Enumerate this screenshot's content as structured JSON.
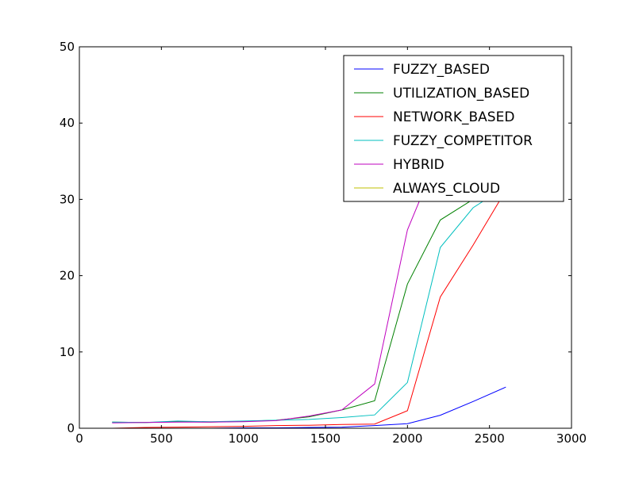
{
  "chart_data": {
    "type": "line",
    "title": "",
    "xlabel": "",
    "ylabel": "",
    "xlim": [
      0,
      3000
    ],
    "ylim": [
      0,
      50
    ],
    "xticks": [
      0,
      500,
      1000,
      1500,
      2000,
      2500,
      3000
    ],
    "yticks": [
      0,
      10,
      20,
      30,
      40,
      50
    ],
    "grid": false,
    "legend_position": "top-right",
    "series": [
      {
        "name": "FUZZY_BASED",
        "color": "#0000ff",
        "x": [
          200,
          400,
          600,
          800,
          1000,
          1200,
          1400,
          1600,
          1800,
          2000,
          2200,
          2400,
          2600
        ],
        "y": [
          0.0,
          0.0,
          0.0,
          0.0,
          0.05,
          0.05,
          0.1,
          0.15,
          0.35,
          0.6,
          1.7,
          3.5,
          5.4
        ]
      },
      {
        "name": "UTILIZATION_BASED",
        "color": "#008000",
        "x": [
          200,
          400,
          600,
          800,
          1000,
          1200,
          1400,
          1600,
          1800,
          2000,
          2200,
          2400,
          2500
        ],
        "y": [
          0.8,
          0.75,
          0.85,
          0.8,
          0.9,
          1.05,
          1.5,
          2.4,
          3.6,
          18.9,
          27.3,
          30.0,
          31.2
        ]
      },
      {
        "name": "NETWORK_BASED",
        "color": "#ff0000",
        "x": [
          200,
          400,
          600,
          800,
          1000,
          1200,
          1400,
          1600,
          1800,
          2000,
          2200,
          2400,
          2600
        ],
        "y": [
          0.0,
          0.1,
          0.15,
          0.2,
          0.25,
          0.35,
          0.4,
          0.5,
          0.55,
          2.3,
          17.2,
          24.0,
          31.2
        ]
      },
      {
        "name": "FUZZY_COMPETITOR",
        "color": "#00bfbf",
        "x": [
          200,
          400,
          600,
          800,
          1000,
          1200,
          1400,
          1600,
          1800,
          2000,
          2200,
          2400,
          2500
        ],
        "y": [
          0.8,
          0.75,
          0.95,
          0.85,
          0.95,
          1.05,
          1.15,
          1.4,
          1.75,
          6.0,
          23.7,
          28.9,
          30.3
        ]
      },
      {
        "name": "HYBRID",
        "color": "#bf00bf",
        "x": [
          200,
          400,
          600,
          800,
          1000,
          1200,
          1400,
          1600,
          1800,
          2000,
          2100
        ],
        "y": [
          0.7,
          0.75,
          0.8,
          0.8,
          0.85,
          1.0,
          1.6,
          2.4,
          5.8,
          26.0,
          31.2
        ]
      },
      {
        "name": "ALWAYS_CLOUD",
        "color": "#bfbf00",
        "x": [],
        "y": []
      }
    ]
  }
}
